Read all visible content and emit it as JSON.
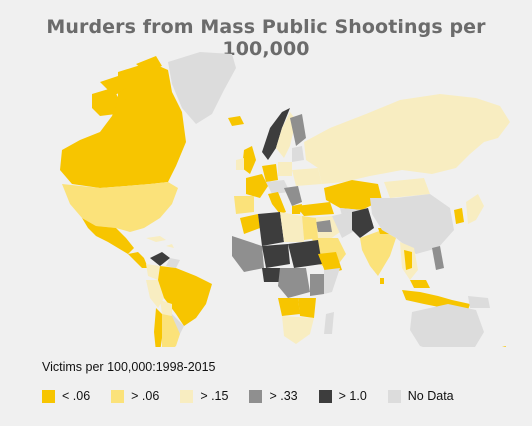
{
  "title": "Murders from Mass Public Shootings per 100,000",
  "legend": {
    "title": "Victims per 100,000:1998-2015",
    "items": [
      {
        "label": "< .06",
        "color": "#f7c500"
      },
      {
        "label": "> .06",
        "color": "#fbe27a"
      },
      {
        "label": "> .15",
        "color": "#f8edc1"
      },
      {
        "label": "> .33",
        "color": "#8f8f8f"
      },
      {
        "label": "> 1.0",
        "color": "#3d3d3d"
      },
      {
        "label": "No Data",
        "color": "#dcdcdc"
      }
    ]
  }
}
